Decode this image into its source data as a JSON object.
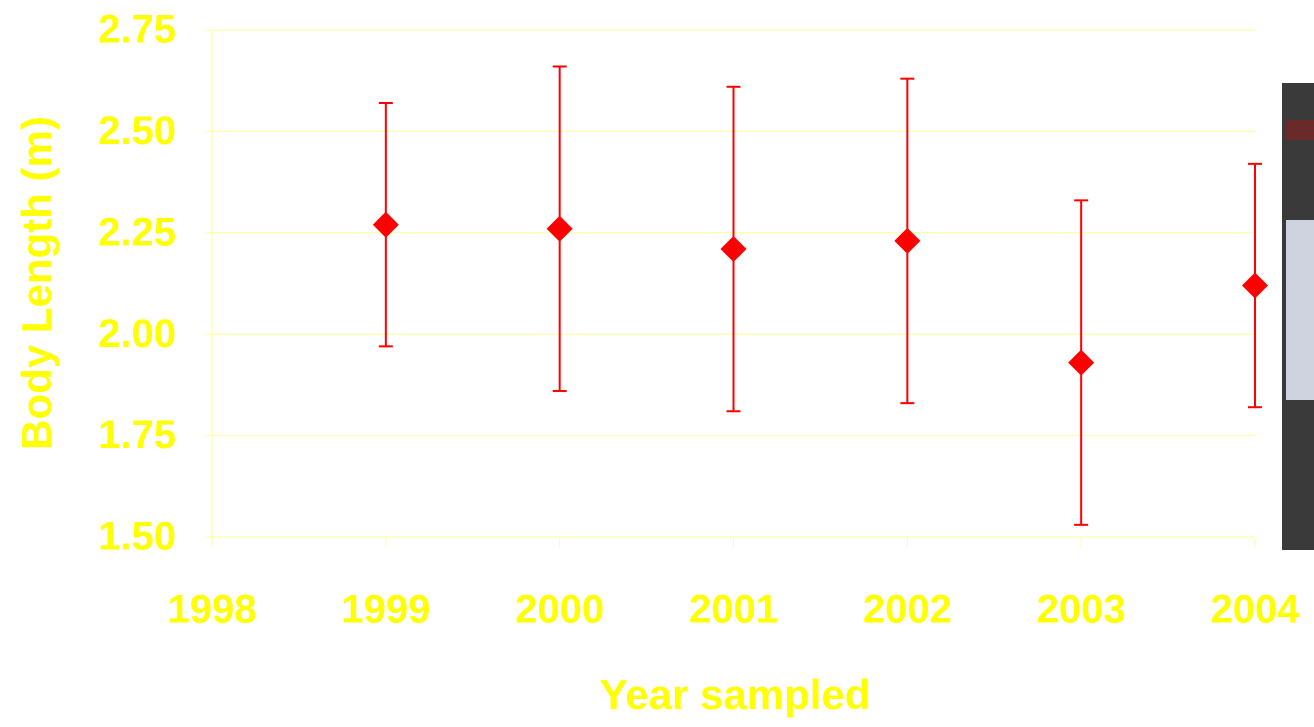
{
  "chart_data": {
    "type": "scatter",
    "x_label": "Year sampled",
    "y_label": "Body Length (m)",
    "x": [
      1999,
      2000,
      2001,
      2002,
      2003,
      2004
    ],
    "values": [
      2.27,
      2.26,
      2.21,
      2.23,
      1.93,
      2.12
    ],
    "errors": [
      0.3,
      0.4,
      0.4,
      0.4,
      0.4,
      0.3
    ],
    "color": "#ff0000",
    "xlim": [
      1998,
      2004
    ],
    "xticks": [
      1998,
      1999,
      2000,
      2001,
      2002,
      2003,
      2004
    ],
    "ylim": [
      1.5,
      2.75
    ],
    "yticks": [
      {
        "value": 1.5,
        "label": "1.50"
      },
      1.75,
      {
        "value": 2.0,
        "label": "2.00"
      },
      2.25,
      {
        "value": 2.5,
        "label": "2.50"
      },
      2.75
    ],
    "grid": true
  }
}
